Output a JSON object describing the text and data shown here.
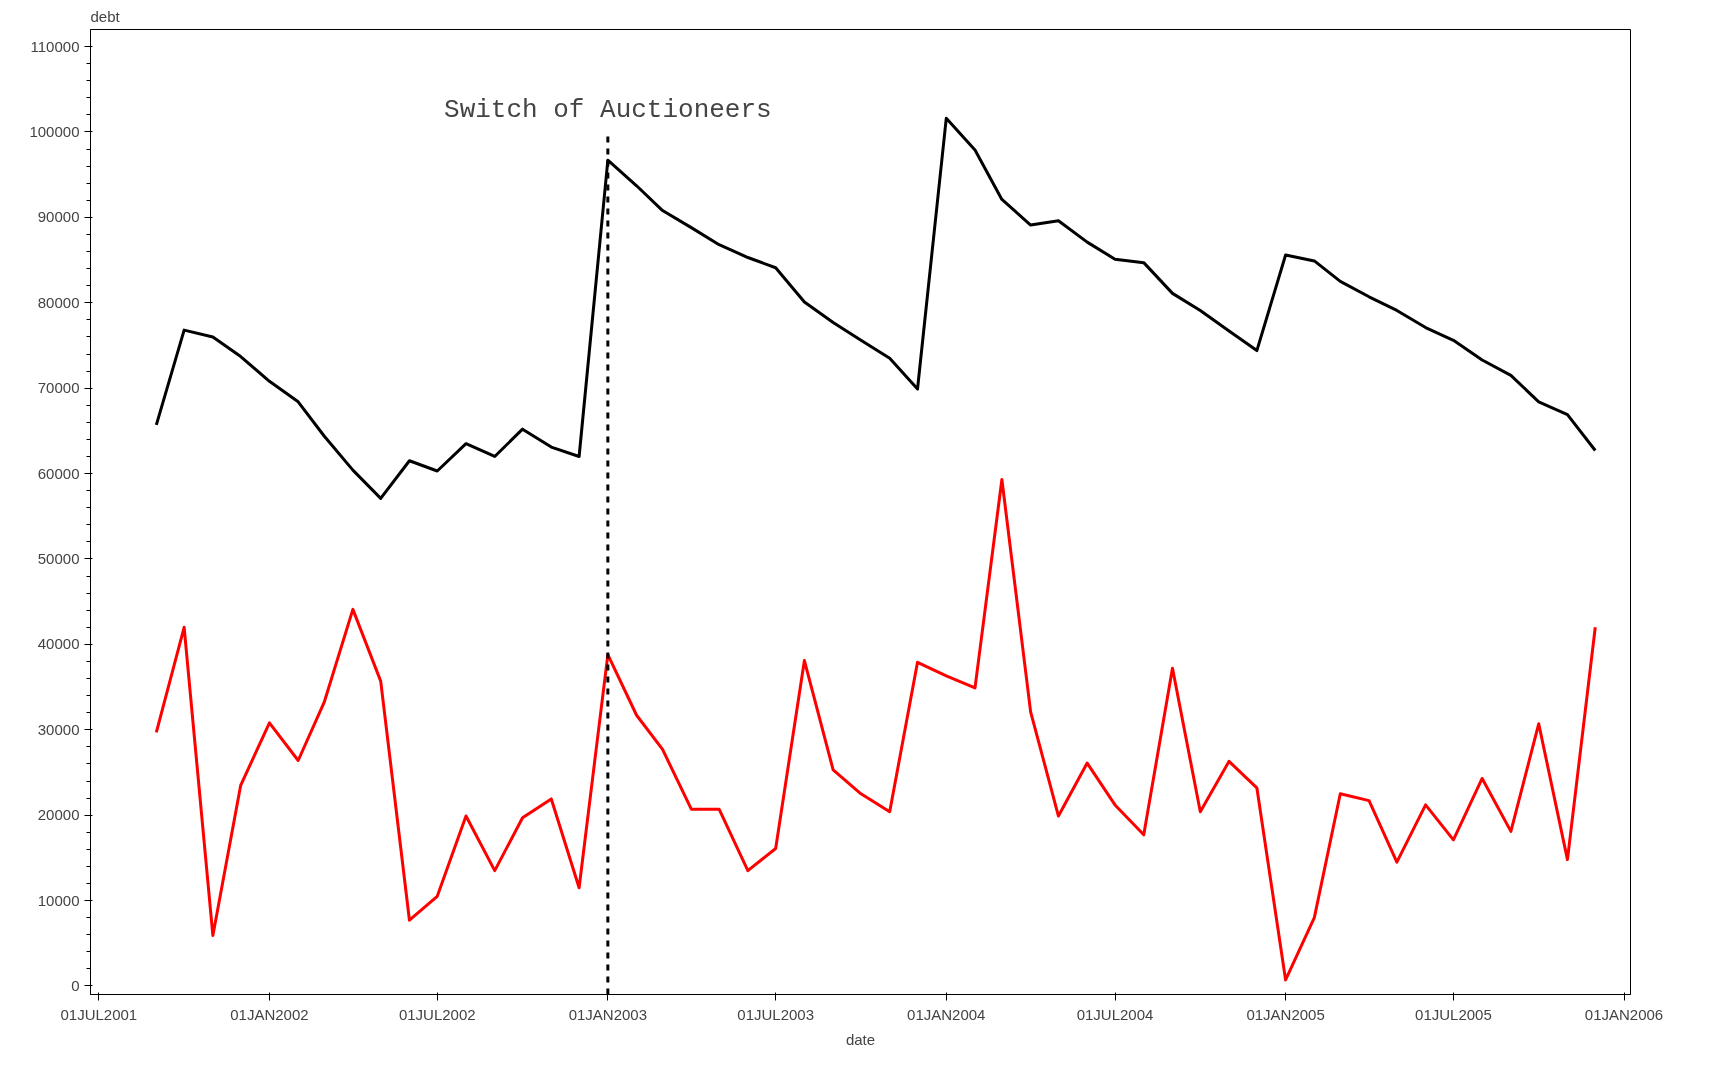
{
  "chart_data": {
    "type": "line",
    "xlabel": "date",
    "ylabel": "debt",
    "x": [
      "2001-09-01",
      "2001-10-01",
      "2001-11-01",
      "2001-12-01",
      "2002-01-01",
      "2002-02-01",
      "2002-03-01",
      "2002-04-01",
      "2002-05-01",
      "2002-06-01",
      "2002-07-01",
      "2002-08-01",
      "2002-09-01",
      "2002-10-01",
      "2002-11-01",
      "2002-12-01",
      "2003-01-01",
      "2003-02-01",
      "2003-03-01",
      "2003-04-01",
      "2003-05-01",
      "2003-06-01",
      "2003-07-01",
      "2003-08-01",
      "2003-09-01",
      "2003-10-01",
      "2003-11-01",
      "2003-12-01",
      "2004-01-01",
      "2004-02-01",
      "2004-03-01",
      "2004-04-01",
      "2004-05-01",
      "2004-06-01",
      "2004-07-01",
      "2004-08-01",
      "2004-09-01",
      "2004-10-01",
      "2004-11-01",
      "2004-12-01",
      "2005-01-01",
      "2005-02-01",
      "2005-03-01",
      "2005-04-01",
      "2005-05-01",
      "2005-06-01",
      "2005-07-01",
      "2005-08-01",
      "2005-09-01",
      "2005-10-01",
      "2005-11-01",
      "2005-12-01"
    ],
    "series": [
      {
        "color": "#000000",
        "values": [
          65700,
          76800,
          76000,
          73700,
          70800,
          68400,
          64400,
          60400,
          57100,
          61500,
          60300,
          63500,
          62000,
          65200,
          63100,
          62000,
          96700,
          93700,
          90800,
          88800,
          86800,
          85300,
          84100,
          80100,
          77700,
          75600,
          73500,
          69900,
          101600,
          97900,
          92100,
          89100,
          89600,
          87100,
          85100,
          84700,
          81100,
          79100,
          76700,
          74400,
          85600,
          84900,
          82500,
          80700,
          79100,
          77100,
          75600,
          73300,
          71500,
          68400,
          66900,
          62700
        ]
      },
      {
        "color": "#ff0000",
        "values": [
          29700,
          42000,
          5900,
          23500,
          30800,
          26400,
          33200,
          44100,
          35700,
          7700,
          10500,
          19900,
          13500,
          19700,
          21900,
          11500,
          38800,
          31700,
          27700,
          20700,
          20700,
          13500,
          16100,
          38100,
          25300,
          22500,
          20400,
          37900,
          36300,
          34900,
          59300,
          32100,
          19900,
          26100,
          21200,
          17700,
          37200,
          20400,
          26300,
          23200,
          700,
          8000,
          22500,
          21700,
          14500,
          21200,
          17100,
          24300,
          18100,
          30700,
          14800,
          42000
        ]
      }
    ],
    "xlim": [
      "2001-06-22",
      "2006-01-08"
    ],
    "xticks": [
      {
        "value": "2001-07-01",
        "label": "01JUL2001"
      },
      {
        "value": "2002-01-01",
        "label": "01JAN2002"
      },
      {
        "value": "2002-07-01",
        "label": "01JUL2002"
      },
      {
        "value": "2003-01-01",
        "label": "01JAN2003"
      },
      {
        "value": "2003-07-01",
        "label": "01JUL2003"
      },
      {
        "value": "2004-01-01",
        "label": "01JAN2004"
      },
      {
        "value": "2004-07-01",
        "label": "01JUL2004"
      },
      {
        "value": "2005-01-01",
        "label": "01JAN2005"
      },
      {
        "value": "2005-07-01",
        "label": "01JUL2005"
      },
      {
        "value": "2006-01-01",
        "label": "01JAN2006"
      }
    ],
    "ylim": [
      -1000,
      112000
    ],
    "yticks": [
      0,
      10000,
      20000,
      30000,
      40000,
      50000,
      60000,
      70000,
      80000,
      90000,
      100000,
      110000
    ],
    "ref_lines": [
      {
        "axis": "x",
        "value": "2003-01-01",
        "label": "Switch of Auctioneers",
        "color": "#000000",
        "line_style": "dashed"
      }
    ],
    "grid": false,
    "marker": "none",
    "line_style": "solid"
  }
}
